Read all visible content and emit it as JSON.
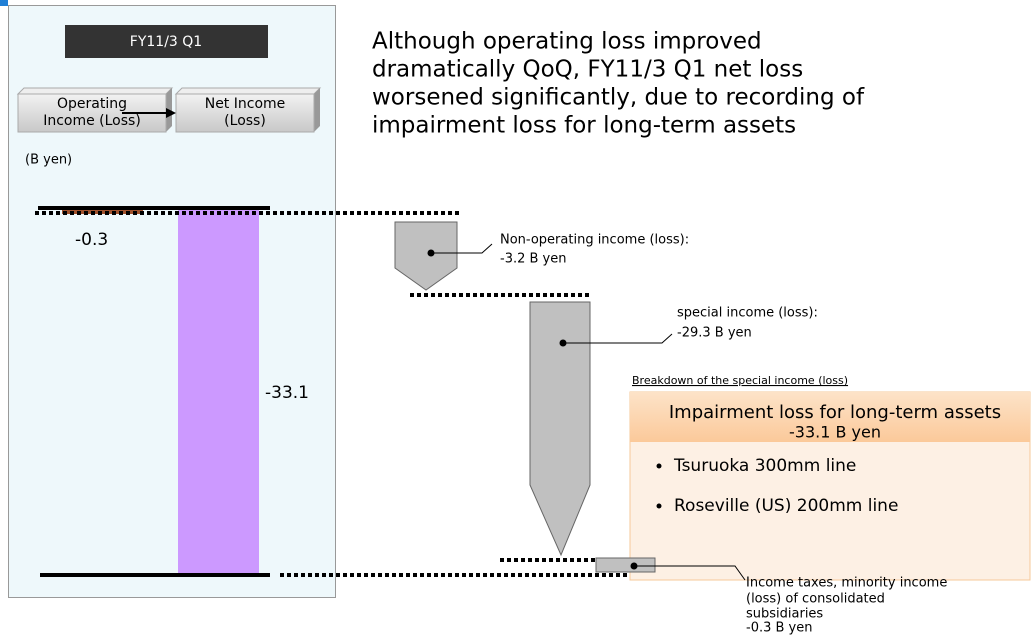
{
  "panel": {
    "period": "FY11/3 Q1",
    "from_label": [
      "Operating",
      "Income (Loss)"
    ],
    "to_label": [
      "Net Income",
      "(Loss)"
    ],
    "unit": "(B yen)",
    "operating_value": "-0.3",
    "net_value": "-33.1"
  },
  "summary": [
    "Although operating loss improved",
    "dramatically QoQ, FY11/3 Q1 net loss",
    "worsened significantly, due to recording of",
    "impairment loss for long-term assets"
  ],
  "steps": [
    {
      "label": "Non-operating income (loss):",
      "amount": "-3.2 B yen"
    },
    {
      "label": "special income (loss):",
      "amount": "-29.3 B yen"
    },
    {
      "label": [
        "Income taxes, minority income",
        "(loss) of consolidated",
        "subsidiaries"
      ],
      "amount": "-0.3 B yen"
    }
  ],
  "breakdown": {
    "heading": "Breakdown of the special income (loss)",
    "title": "Impairment loss for long-term assets",
    "amount": "-33.1 B yen",
    "items": [
      "Tsuruoka 300mm line",
      "Roseville (US) 200mm line"
    ]
  }
}
